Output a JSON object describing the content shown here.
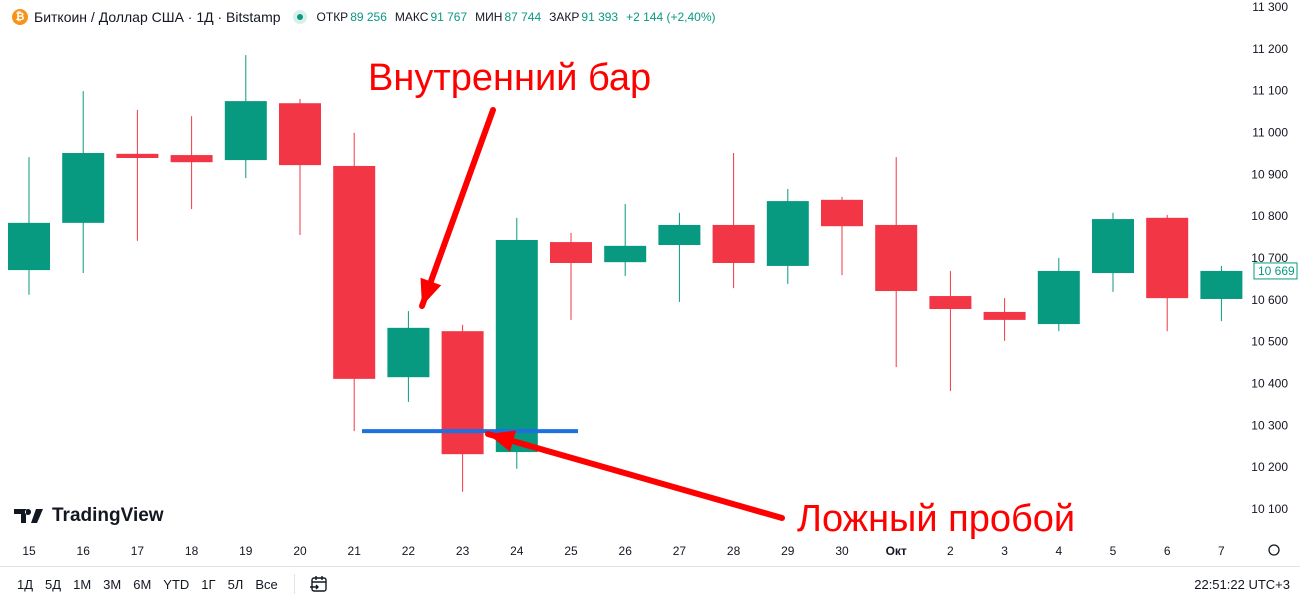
{
  "header": {
    "symbol": "Биткоин / Доллар США · 1Д · Bitstamp",
    "open_label": "ОТКР",
    "open": "89 256",
    "high_label": "МАКС",
    "high": "91 767",
    "low_label": "МИН",
    "low": "87 744",
    "close_label": "ЗАКР",
    "close": "91 393",
    "change": "+2 144 (+2,40%)"
  },
  "colors": {
    "up": "#089981",
    "down": "#f23645",
    "annotation_line": "#1e6fe0",
    "arrow": "#ff0000"
  },
  "chart_data": {
    "type": "candlestick",
    "categories": [
      "15",
      "16",
      "17",
      "18",
      "19",
      "20",
      "21",
      "22",
      "23",
      "24",
      "25",
      "26",
      "27",
      "28",
      "29",
      "30",
      "Окт",
      "2",
      "3",
      "4",
      "5",
      "6",
      "7"
    ],
    "ohlc": [
      [
        10671,
        10941,
        10612,
        10784
      ],
      [
        10784,
        11099,
        10664,
        10951
      ],
      [
        10949,
        11054,
        10741,
        10939
      ],
      [
        10946,
        11039,
        10817,
        10929
      ],
      [
        10934,
        11185,
        10891,
        11075
      ],
      [
        11070,
        11080,
        10755,
        10922
      ],
      [
        10920,
        10999,
        10286,
        10411
      ],
      [
        10415,
        10573,
        10356,
        10533
      ],
      [
        10525,
        10540,
        10141,
        10231
      ],
      [
        10236,
        10796,
        10196,
        10743
      ],
      [
        10738,
        10760,
        10552,
        10688
      ],
      [
        10690,
        10829,
        10657,
        10729
      ],
      [
        10731,
        10808,
        10595,
        10779
      ],
      [
        10779,
        10951,
        10628,
        10688
      ],
      [
        10681,
        10865,
        10638,
        10836
      ],
      [
        10839,
        10846,
        10659,
        10776
      ],
      [
        10779,
        10941,
        10439,
        10621
      ],
      [
        10609,
        10669,
        10382,
        10578
      ],
      [
        10571,
        10604,
        10502,
        10552
      ],
      [
        10542,
        10700,
        10525,
        10669
      ],
      [
        10664,
        10808,
        10619,
        10793
      ],
      [
        10796,
        10803,
        10525,
        10604
      ],
      [
        10602,
        10681,
        10549,
        10669
      ]
    ],
    "y_ticks": [
      "11 300",
      "11 200",
      "11 100",
      "11 000",
      "10 900",
      "10 800",
      "10 700",
      "10 600",
      "10 500",
      "10 400",
      "10 300",
      "10 200",
      "10 100"
    ],
    "ylim": [
      10100,
      11300
    ],
    "last_price": "10 669",
    "support_level": 10286,
    "annotations": [
      "Внутренний бар",
      "Ложный пробой"
    ]
  },
  "logo": "TradingView",
  "ranges": [
    "1Д",
    "5Д",
    "1М",
    "3М",
    "6М",
    "YTD",
    "1Г",
    "5Л",
    "Все"
  ],
  "clock": "22:51:22 UTC+3"
}
